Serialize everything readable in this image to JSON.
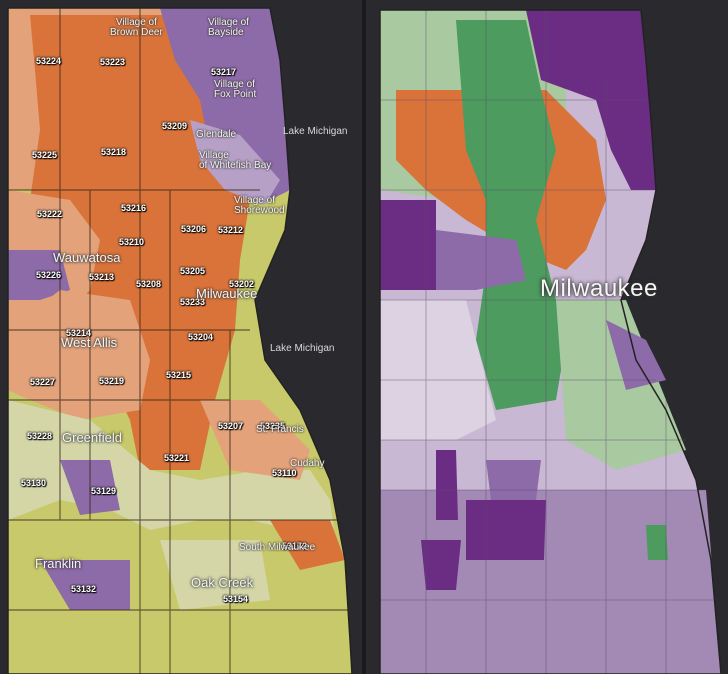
{
  "left_map": {
    "zip_labels": [
      "53224",
      "53223",
      "53217",
      "53209",
      "53225",
      "53218",
      "53222",
      "53216",
      "53212",
      "53210",
      "53206",
      "53226",
      "53213",
      "53208",
      "53205",
      "53202",
      "53233",
      "53214",
      "53204",
      "53227",
      "53219",
      "53215",
      "53228",
      "53207",
      "53235",
      "53221",
      "53130",
      "53129",
      "53110",
      "53132",
      "53154",
      "53172"
    ],
    "place_labels": [
      "Village of\nBrown Deer",
      "Village of\nBayside",
      "Village of\nFox Point",
      "Glendale",
      "Village\nof Whitefish Bay",
      "Village of\nShorewood",
      "St. Francis",
      "Cudahy",
      "South Milwaukee"
    ],
    "city_labels": [
      "Wauwatosa",
      "Milwaukee",
      "West Allis",
      "Greenfield",
      "Franklin",
      "Oak Creek"
    ],
    "lake_labels": [
      "Lake Michigan",
      "Lake Michigan"
    ]
  },
  "right_map": {
    "city_label": "Milwaukee"
  },
  "colors": {
    "dark_orange": "#d9733a",
    "light_orange": "#e3a27a",
    "purple": "#8d6aa8",
    "light_purple": "#b7a0c6",
    "yellow_green": "#c8c96a",
    "dark_purple": "#6b2d83",
    "green": "#4d9b5e",
    "light_green": "#a9c9a0"
  }
}
